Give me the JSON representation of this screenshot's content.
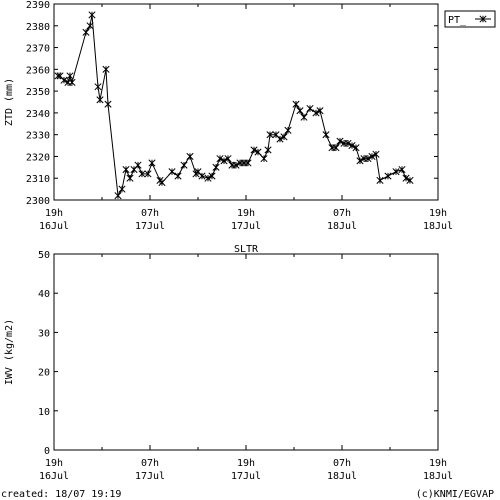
{
  "chart_data": [
    {
      "type": "line",
      "ylabel": "ZTD (mm)",
      "ylim": [
        2300,
        2390
      ],
      "yticks": [
        2300,
        2310,
        2320,
        2330,
        2340,
        2350,
        2360,
        2370,
        2380,
        2390
      ],
      "xlim": [
        0,
        48
      ],
      "xticks": [
        {
          "t": 0,
          "hour": "19h",
          "date": "16Jul"
        },
        {
          "t": 12,
          "hour": "07h",
          "date": "17Jul"
        },
        {
          "t": 24,
          "hour": "19h",
          "date": "17Jul"
        },
        {
          "t": 36,
          "hour": "07h",
          "date": "18Jul"
        },
        {
          "t": 48,
          "hour": "19h",
          "date": "18Jul"
        }
      ],
      "legend": {
        "position": "top-right",
        "entries": [
          "PT_"
        ]
      },
      "grid": false,
      "series": [
        {
          "name": "PT_",
          "marker": "asterisk",
          "points": [
            [
              0.5,
              2357
            ],
            [
              0.75,
              2357
            ],
            [
              1.25,
              2355
            ],
            [
              1.75,
              2354
            ],
            [
              2.0,
              2357
            ],
            [
              2.25,
              2354
            ],
            [
              4.0,
              2377
            ],
            [
              4.5,
              2380
            ],
            [
              4.75,
              2385
            ],
            [
              5.5,
              2352
            ],
            [
              5.75,
              2346
            ],
            [
              6.5,
              2360
            ],
            [
              6.75,
              2344
            ],
            [
              8.0,
              2302
            ],
            [
              8.5,
              2305
            ],
            [
              9.0,
              2314
            ],
            [
              9.5,
              2310
            ],
            [
              10.0,
              2314
            ],
            [
              10.5,
              2316
            ],
            [
              11.0,
              2312
            ],
            [
              11.75,
              2312
            ],
            [
              12.25,
              2317
            ],
            [
              13.25,
              2309
            ],
            [
              13.5,
              2308
            ],
            [
              14.75,
              2313
            ],
            [
              15.5,
              2311
            ],
            [
              16.25,
              2316
            ],
            [
              17.0,
              2320
            ],
            [
              17.75,
              2312
            ],
            [
              18.0,
              2313
            ],
            [
              18.5,
              2311
            ],
            [
              19.25,
              2310
            ],
            [
              19.75,
              2311
            ],
            [
              20.25,
              2315
            ],
            [
              20.75,
              2319
            ],
            [
              21.25,
              2318
            ],
            [
              21.75,
              2319
            ],
            [
              22.25,
              2316
            ],
            [
              22.75,
              2316
            ],
            [
              23.25,
              2317
            ],
            [
              23.75,
              2317
            ],
            [
              24.25,
              2317
            ],
            [
              25.0,
              2323
            ],
            [
              25.5,
              2322
            ],
            [
              26.25,
              2319
            ],
            [
              26.75,
              2323
            ],
            [
              27.0,
              2330
            ],
            [
              27.75,
              2330
            ],
            [
              28.25,
              2328
            ],
            [
              28.75,
              2329
            ],
            [
              29.25,
              2332
            ],
            [
              30.25,
              2344
            ],
            [
              30.75,
              2341
            ],
            [
              31.25,
              2338
            ],
            [
              32.0,
              2342
            ],
            [
              32.75,
              2340
            ],
            [
              33.25,
              2341
            ],
            [
              34.0,
              2330
            ],
            [
              34.75,
              2324
            ],
            [
              35.25,
              2324
            ],
            [
              35.75,
              2327
            ],
            [
              36.25,
              2326
            ],
            [
              36.75,
              2326
            ],
            [
              37.25,
              2325
            ],
            [
              37.75,
              2324
            ],
            [
              38.25,
              2318
            ],
            [
              38.75,
              2319
            ],
            [
              39.25,
              2319
            ],
            [
              39.75,
              2320
            ],
            [
              40.25,
              2321
            ],
            [
              40.75,
              2309
            ],
            [
              41.75,
              2311
            ],
            [
              42.75,
              2313
            ],
            [
              43.5,
              2314
            ],
            [
              44.0,
              2310
            ],
            [
              44.5,
              2309
            ]
          ]
        }
      ]
    },
    {
      "type": "line",
      "title": "SLTR",
      "ylabel": "IWV (kg/m2)",
      "ylim": [
        0,
        50
      ],
      "yticks": [
        0,
        10,
        20,
        30,
        40,
        50
      ],
      "xlim": [
        0,
        48
      ],
      "xticks": [
        {
          "t": 0,
          "hour": "19h",
          "date": "16Jul"
        },
        {
          "t": 12,
          "hour": "07h",
          "date": "17Jul"
        },
        {
          "t": 24,
          "hour": "19h",
          "date": "17Jul"
        },
        {
          "t": 36,
          "hour": "07h",
          "date": "18Jul"
        },
        {
          "t": 48,
          "hour": "19h",
          "date": "18Jul"
        }
      ],
      "grid": false,
      "series": []
    }
  ],
  "footer": {
    "created": "created: 18/07 19:19",
    "credit": "(c)KNMI/EGVAP"
  }
}
